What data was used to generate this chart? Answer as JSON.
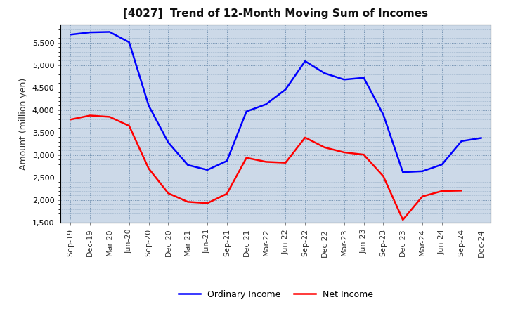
{
  "title": "[4027]  Trend of 12-Month Moving Sum of Incomes",
  "ylabel": "Amount (million yen)",
  "background_color": "#ffffff",
  "plot_background": "#ccd9e8",
  "grid_color": "#7090b0",
  "x_labels": [
    "Sep-19",
    "Dec-19",
    "Mar-20",
    "Jun-20",
    "Sep-20",
    "Dec-20",
    "Mar-21",
    "Jun-21",
    "Sep-21",
    "Dec-21",
    "Mar-22",
    "Jun-22",
    "Sep-22",
    "Dec-22",
    "Mar-23",
    "Jun-23",
    "Sep-23",
    "Dec-23",
    "Mar-24",
    "Jun-24",
    "Sep-24",
    "Dec-24"
  ],
  "ordinary_income": [
    5680,
    5730,
    5740,
    5510,
    4100,
    3280,
    2780,
    2670,
    2870,
    3970,
    4130,
    4460,
    5090,
    4820,
    4680,
    4720,
    3900,
    2620,
    2640,
    2790,
    3310,
    3380
  ],
  "net_income": [
    3790,
    3880,
    3850,
    3650,
    2700,
    2150,
    1960,
    1930,
    2140,
    2940,
    2850,
    2830,
    3390,
    3170,
    3060,
    3010,
    2530,
    1560,
    2080,
    2200,
    2210,
    null
  ],
  "ordinary_color": "#0000ff",
  "net_color": "#ff0000",
  "ylim": [
    1500,
    5900
  ],
  "yticks": [
    1500,
    2000,
    2500,
    3000,
    3500,
    4000,
    4500,
    5000,
    5500
  ],
  "line_width": 1.8,
  "title_fontsize": 11,
  "axis_fontsize": 9,
  "tick_fontsize": 8
}
